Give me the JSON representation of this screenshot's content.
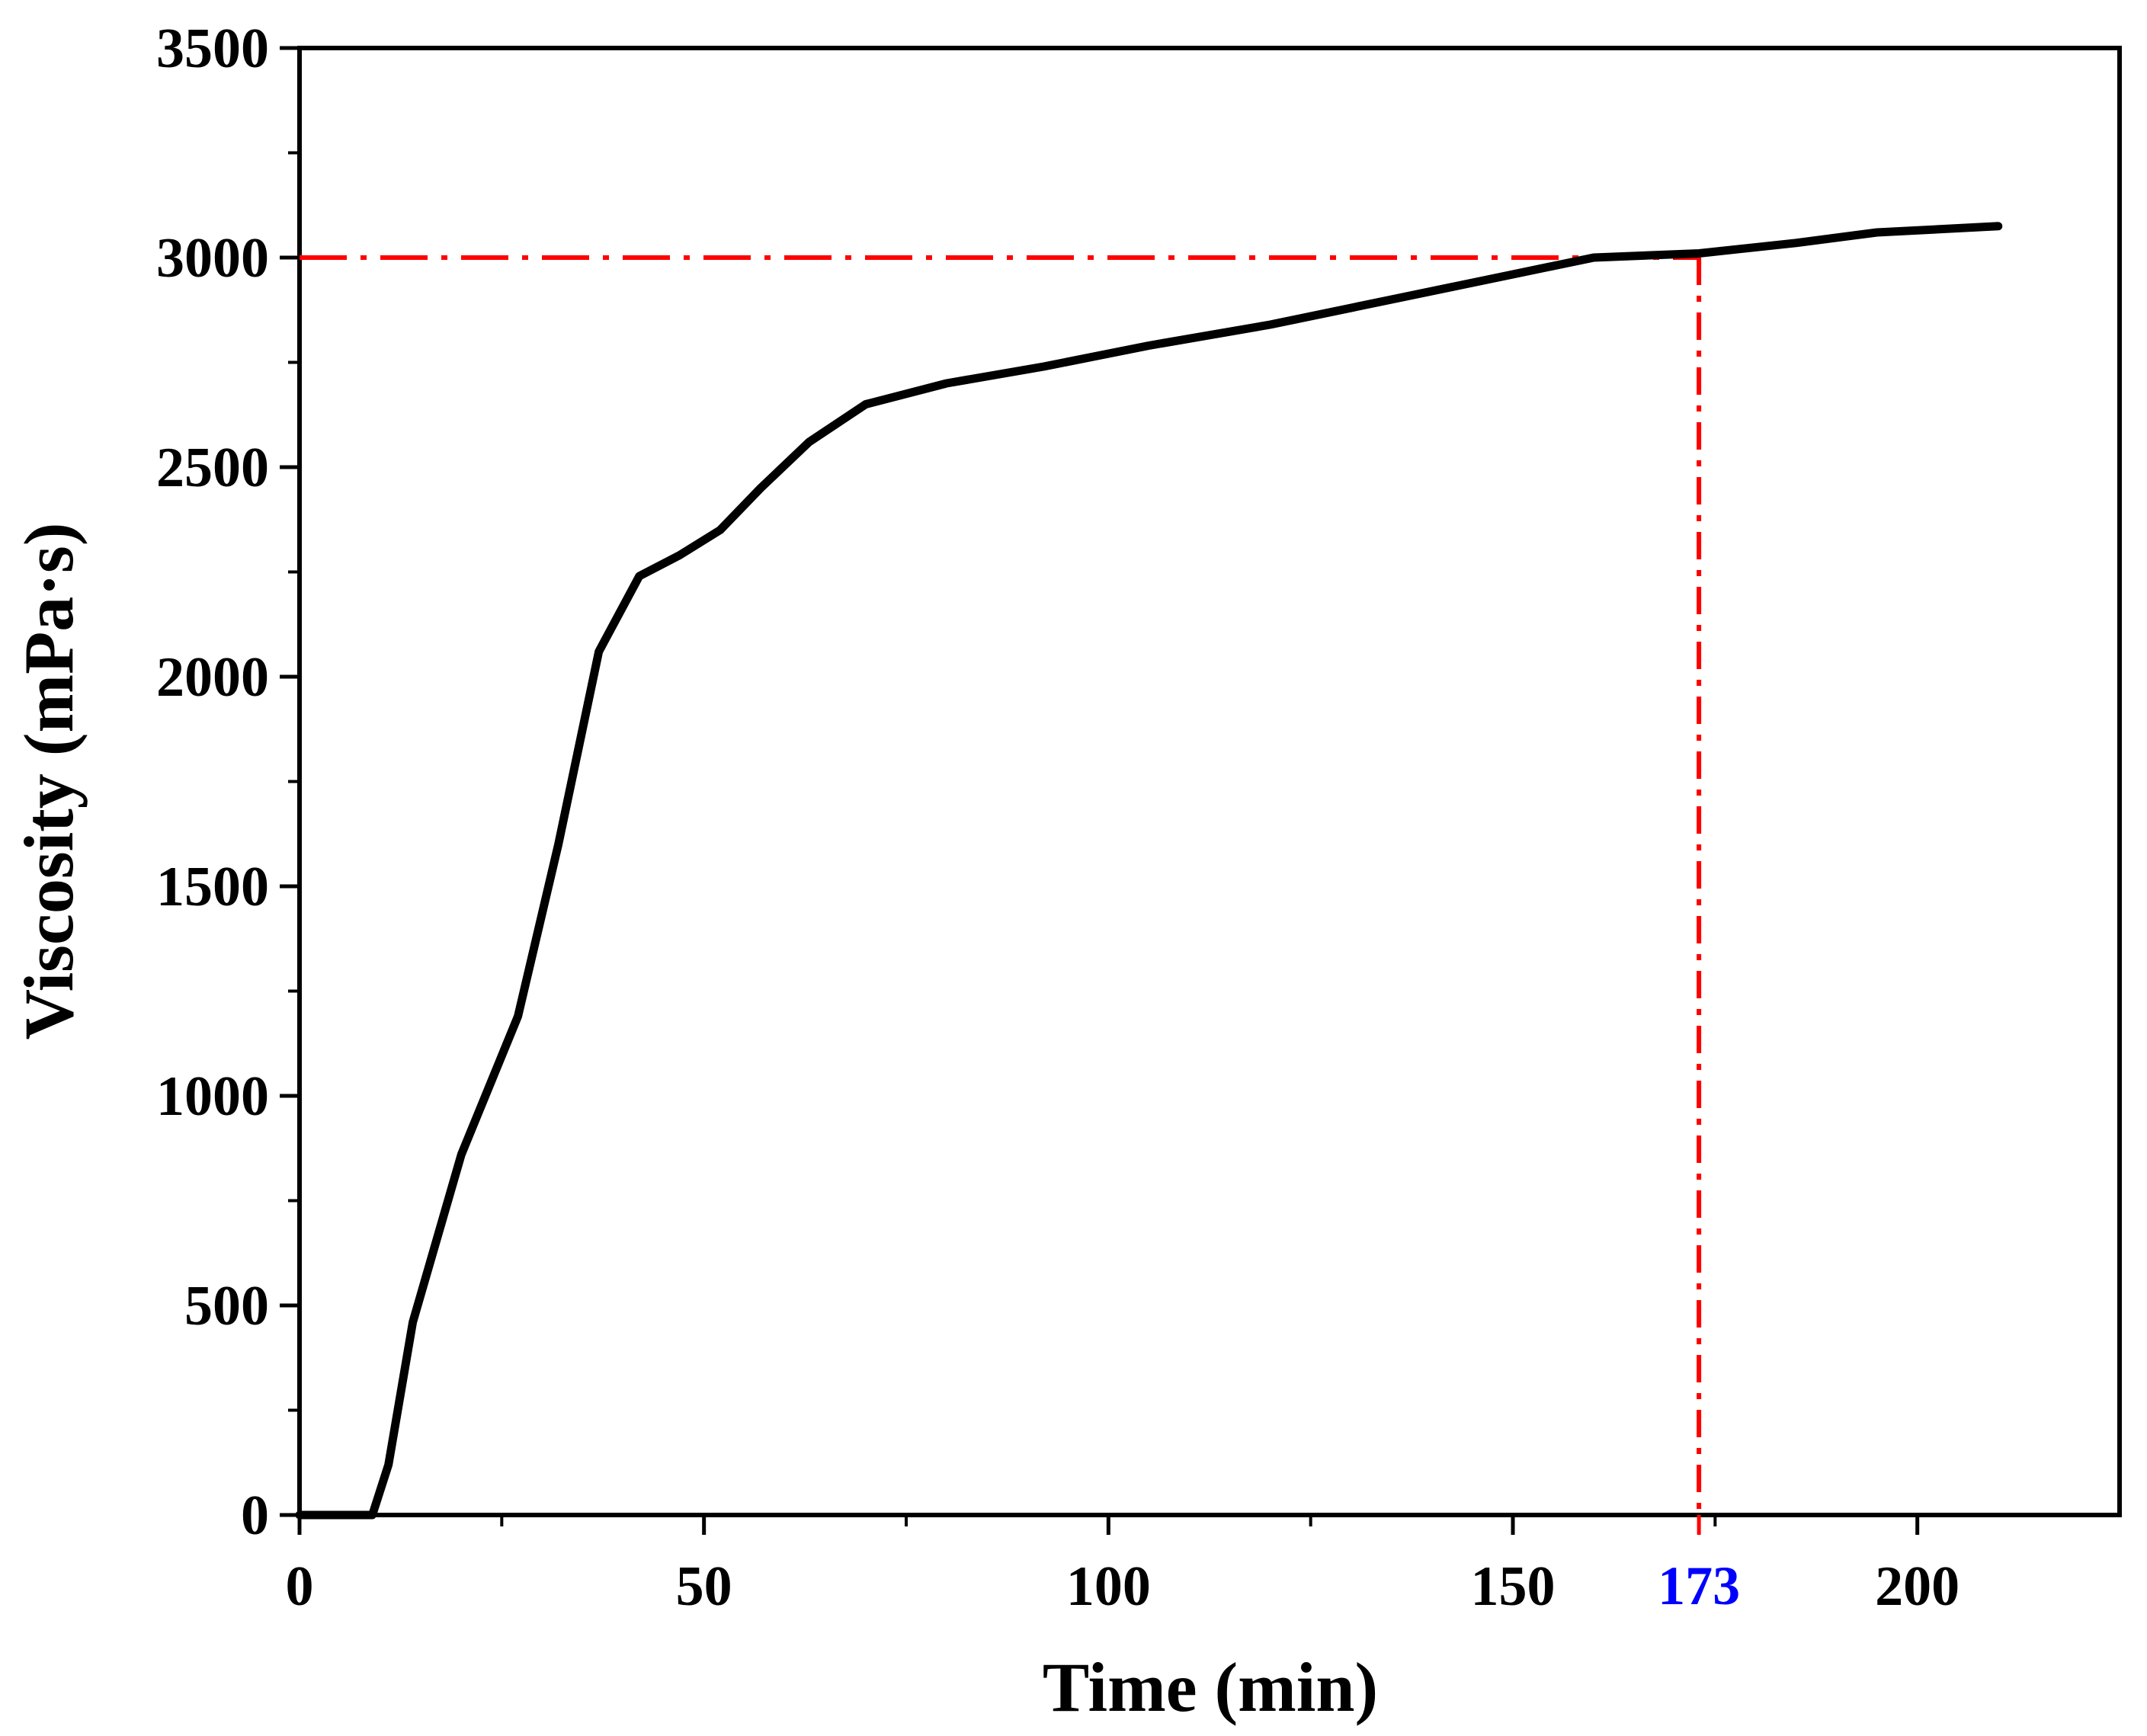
{
  "chart_data": {
    "type": "line",
    "title": "",
    "xlabel": "Time (min)",
    "ylabel": "Viscosity (mPa·s)",
    "xlim": [
      0,
      225
    ],
    "ylim": [
      0,
      3500
    ],
    "x_ticks": [
      0,
      50,
      100,
      150,
      200
    ],
    "x_tick_labels": [
      "0",
      "50",
      "100",
      "150",
      "200"
    ],
    "x_minor_ticks": [
      25,
      75,
      125,
      175
    ],
    "y_ticks": [
      0,
      500,
      1000,
      1500,
      2000,
      2500,
      3000,
      3500
    ],
    "y_tick_labels": [
      "0",
      "500",
      "1000",
      "1500",
      "2000",
      "2500",
      "3000",
      "3500"
    ],
    "y_minor_ticks": [
      250,
      750,
      1250,
      1750,
      2250,
      2750,
      3250
    ],
    "grid": false,
    "series": [
      {
        "name": "Viscosity",
        "color": "#000000",
        "x": [
          0,
          9,
          11,
          14,
          20,
          27,
          32,
          37,
          42,
          47,
          52,
          57,
          63,
          70,
          80,
          92,
          105,
          120,
          135,
          150,
          160,
          173,
          185,
          195,
          210
        ],
        "y": [
          0,
          0,
          120,
          460,
          860,
          1190,
          1600,
          2060,
          2240,
          2290,
          2350,
          2450,
          2560,
          2650,
          2700,
          2740,
          2790,
          2840,
          2900,
          2960,
          3000,
          3010,
          3035,
          3060,
          3075
        ]
      }
    ],
    "annotations": {
      "reference_y": 3000,
      "reference_x": 173,
      "reference_x_label": "173",
      "reference_color": "#ff0000",
      "label_color": "#0000ff"
    }
  }
}
